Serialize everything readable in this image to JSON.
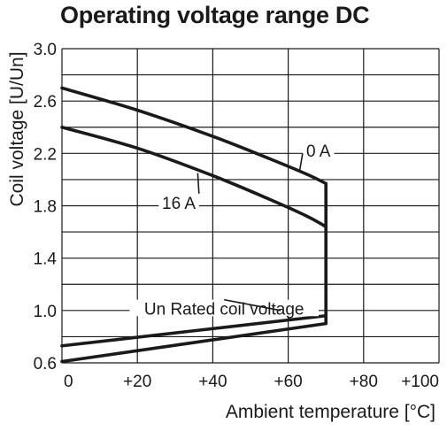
{
  "chart_data": {
    "type": "line",
    "title": "Operating voltage range DC",
    "xlabel": "Ambient temperature [°C]",
    "ylabel": "Coil voltage [U/Un]",
    "xlim": [
      0,
      100
    ],
    "ylim": [
      0.6,
      3.0
    ],
    "x_ticks": [
      "0",
      "+20",
      "+40",
      "+60",
      "+80",
      "+100"
    ],
    "y_ticks": [
      "0.6",
      "1.0",
      "1.4",
      "1.8",
      "2.2",
      "2.6",
      "3.0"
    ],
    "grid": true,
    "series": [
      {
        "name": "0 A",
        "x": [
          0,
          20,
          40,
          55,
          65,
          70
        ],
        "y": [
          2.7,
          2.53,
          2.33,
          2.16,
          2.04,
          1.97
        ]
      },
      {
        "name": "16 A",
        "x": [
          0,
          20,
          40,
          55,
          65,
          70
        ],
        "y": [
          2.4,
          2.24,
          2.03,
          1.85,
          1.72,
          1.64
        ]
      },
      {
        "name": "",
        "x": [
          0,
          70
        ],
        "y": [
          0.73,
          0.96
        ]
      },
      {
        "name": "",
        "x": [
          0,
          70
        ],
        "y": [
          0.61,
          0.9
        ]
      },
      {
        "name": "",
        "x": [
          70,
          70
        ],
        "y": [
          0.9,
          1.97
        ]
      }
    ],
    "annotations": [
      {
        "text": "0 A",
        "x": 68,
        "y": 2.2,
        "points_to": {
          "x": 63,
          "y": 2.06
        }
      },
      {
        "text": "16 A",
        "x": 31,
        "y": 1.8,
        "points_to": {
          "x": 36,
          "y": 2.05
        }
      },
      {
        "text": "Un Rated coil voltage",
        "x": 43,
        "y": 0.99,
        "points_to": {
          "x": 58,
          "y": 1.0
        }
      }
    ]
  }
}
